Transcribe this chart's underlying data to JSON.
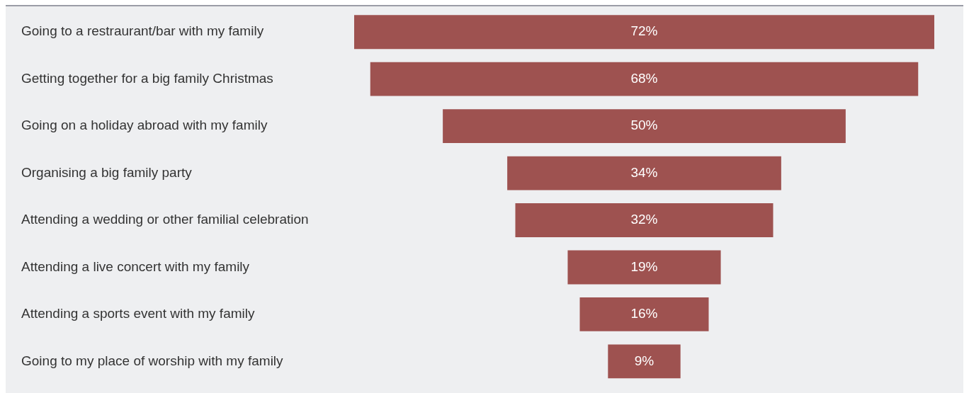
{
  "chart_data": {
    "type": "other",
    "categories": [
      "Going to a restraurant/bar with my family",
      "Getting together for a big family Christmas",
      "Going on a holiday abroad with my family",
      "Organising a big family party",
      "Attending a wedding or other familial celebration",
      "Attending a live concert with my family",
      "Attending a sports event with my family",
      "Going to my place of worship with my family"
    ],
    "values": [
      72,
      68,
      50,
      34,
      32,
      19,
      16,
      9
    ],
    "value_labels": [
      "72%",
      "68%",
      "50%",
      "34%",
      "32%",
      "19%",
      "16%",
      "9%"
    ],
    "color": "#9e5250"
  }
}
